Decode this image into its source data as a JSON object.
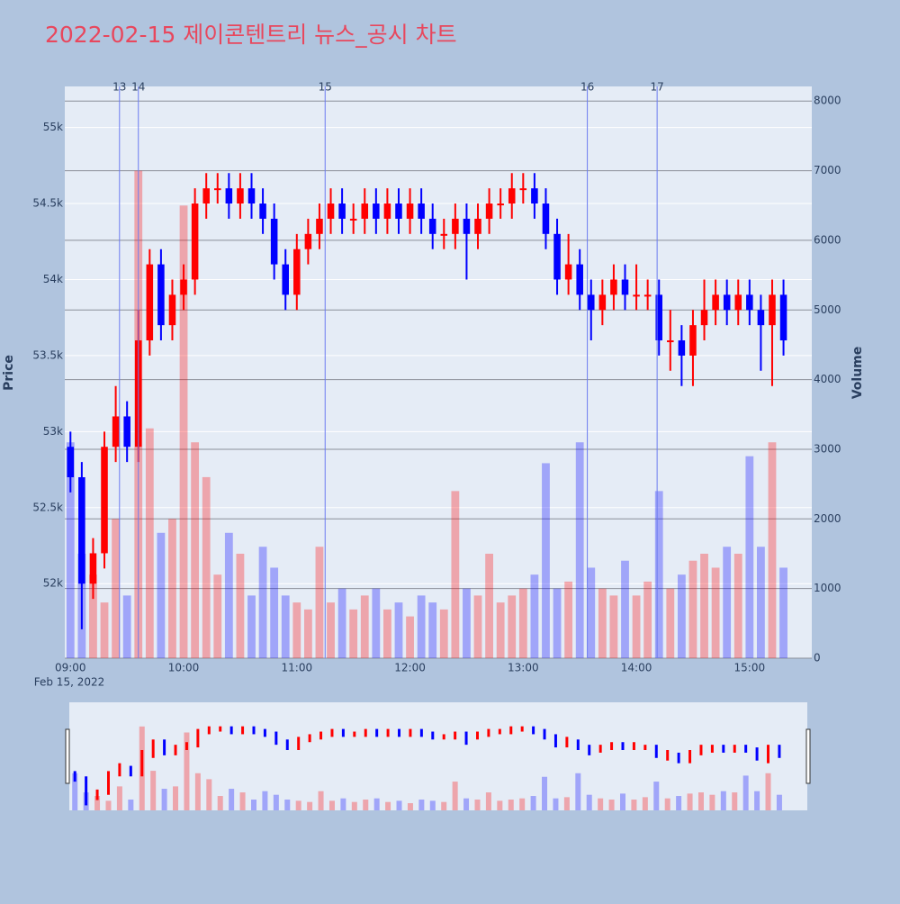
{
  "chart_data": {
    "type": "candlestick",
    "title": "2022-02-15 제이콘텐트리 뉴스_공시 차트",
    "y_axis_title": "Price",
    "y2_axis_title": "Volume",
    "x_date_label": "Feb 15, 2022",
    "increasing_color": "#ff0000",
    "decreasing_color": "#0000ff",
    "x": [
      "09:00",
      "09:06",
      "09:12",
      "09:18",
      "09:24",
      "09:30",
      "09:36",
      "09:42",
      "09:48",
      "09:54",
      "10:00",
      "10:06",
      "10:12",
      "10:18",
      "10:24",
      "10:30",
      "10:36",
      "10:42",
      "10:48",
      "10:54",
      "11:00",
      "11:06",
      "11:12",
      "11:18",
      "11:24",
      "11:30",
      "11:36",
      "11:42",
      "11:48",
      "11:54",
      "12:00",
      "12:06",
      "12:12",
      "12:18",
      "12:24",
      "12:30",
      "12:36",
      "12:42",
      "12:48",
      "12:54",
      "13:00",
      "13:06",
      "13:12",
      "13:18",
      "13:24",
      "13:30",
      "13:36",
      "13:42",
      "13:48",
      "13:54",
      "14:00",
      "14:06",
      "14:12",
      "14:18",
      "14:24",
      "14:30",
      "14:36",
      "14:42",
      "14:48",
      "14:54",
      "15:00",
      "15:06",
      "15:12",
      "15:18"
    ],
    "open": [
      52900,
      52700,
      52000,
      52200,
      52900,
      53100,
      52900,
      53600,
      54100,
      53700,
      53900,
      54000,
      54500,
      54600,
      54600,
      54500,
      54600,
      54500,
      54400,
      54100,
      53900,
      54200,
      54300,
      54400,
      54500,
      54400,
      54400,
      54500,
      54400,
      54500,
      54400,
      54500,
      54400,
      54300,
      54300,
      54400,
      54300,
      54400,
      54500,
      54500,
      54600,
      54600,
      54500,
      54300,
      54000,
      54100,
      53900,
      53800,
      53900,
      54000,
      53900,
      53900,
      53900,
      53600,
      53600,
      53500,
      53700,
      53800,
      53900,
      53800,
      53900,
      53800,
      53700,
      53900
    ],
    "high": [
      53000,
      52800,
      52300,
      53000,
      53300,
      53200,
      53800,
      54200,
      54200,
      54000,
      54100,
      54600,
      54700,
      54700,
      54700,
      54700,
      54700,
      54600,
      54500,
      54200,
      54300,
      54400,
      54500,
      54600,
      54600,
      54500,
      54600,
      54600,
      54600,
      54600,
      54600,
      54600,
      54500,
      54400,
      54500,
      54500,
      54500,
      54600,
      54600,
      54700,
      54700,
      54700,
      54600,
      54400,
      54300,
      54200,
      54000,
      54000,
      54100,
      54100,
      54100,
      54000,
      54000,
      53800,
      53700,
      53800,
      54000,
      54000,
      54000,
      54000,
      54000,
      53900,
      54000,
      54000
    ],
    "low": [
      52600,
      51700,
      51900,
      52100,
      52800,
      52800,
      52800,
      53500,
      53600,
      53600,
      53800,
      53900,
      54400,
      54500,
      54400,
      54400,
      54400,
      54300,
      54000,
      53800,
      53800,
      54100,
      54200,
      54300,
      54300,
      54300,
      54300,
      54300,
      54300,
      54300,
      54300,
      54300,
      54200,
      54200,
      54200,
      54000,
      54200,
      54300,
      54400,
      54400,
      54500,
      54400,
      54200,
      53900,
      53900,
      53800,
      53600,
      53700,
      53800,
      53800,
      53800,
      53800,
      53500,
      53400,
      53300,
      53300,
      53600,
      53700,
      53700,
      53700,
      53700,
      53400,
      53300,
      53500
    ],
    "close": [
      52700,
      52000,
      52200,
      52900,
      53100,
      52900,
      53600,
      54100,
      53700,
      53900,
      54000,
      54500,
      54600,
      54600,
      54500,
      54600,
      54500,
      54400,
      54100,
      53900,
      54200,
      54300,
      54400,
      54500,
      54400,
      54400,
      54500,
      54400,
      54500,
      54400,
      54500,
      54400,
      54300,
      54300,
      54400,
      54300,
      54400,
      54500,
      54500,
      54600,
      54600,
      54500,
      54300,
      54000,
      54100,
      53900,
      53800,
      53900,
      54000,
      53900,
      53900,
      53900,
      53600,
      53600,
      53500,
      53700,
      53800,
      53900,
      53800,
      53900,
      53800,
      53700,
      53900,
      53600
    ],
    "volume": [
      3100,
      1500,
      1200,
      800,
      2000,
      900,
      7000,
      3300,
      1800,
      2000,
      6500,
      3100,
      2600,
      1200,
      1800,
      1500,
      900,
      1600,
      1300,
      900,
      800,
      700,
      1600,
      800,
      1000,
      700,
      900,
      1000,
      700,
      800,
      600,
      900,
      800,
      700,
      2400,
      1000,
      900,
      1500,
      800,
      900,
      1000,
      1200,
      2800,
      1000,
      1100,
      3100,
      1300,
      1000,
      900,
      1400,
      900,
      1100,
      2400,
      1000,
      1200,
      1400,
      1500,
      1300,
      1600,
      1500,
      2900,
      1600,
      3100,
      1300
    ],
    "news": [
      {
        "x": "09:26",
        "label": "13"
      },
      {
        "x": "09:36",
        "label": "14"
      },
      {
        "x": "11:15",
        "label": "15"
      },
      {
        "x": "13:34",
        "label": "16"
      },
      {
        "x": "14:11",
        "label": "17"
      }
    ],
    "xlim": [
      "08:57",
      "15:33"
    ],
    "xticks": [
      "09:00",
      "10:00",
      "11:00",
      "12:00",
      "13:00",
      "14:00",
      "15:00"
    ],
    "ylim": [
      51510,
      55270
    ],
    "yticks": [
      {
        "value": 52000,
        "label": "52k"
      },
      {
        "value": 52500,
        "label": "52.5k"
      },
      {
        "value": 53000,
        "label": "53k"
      },
      {
        "value": 53500,
        "label": "53.5k"
      },
      {
        "value": 54000,
        "label": "54k"
      },
      {
        "value": 54500,
        "label": "54.5k"
      },
      {
        "value": 55000,
        "label": "55k"
      }
    ],
    "y2lim": [
      0,
      8210
    ],
    "y2ticks": [
      0,
      1000,
      2000,
      3000,
      4000,
      5000,
      6000,
      7000,
      8000
    ],
    "grid": true
  }
}
